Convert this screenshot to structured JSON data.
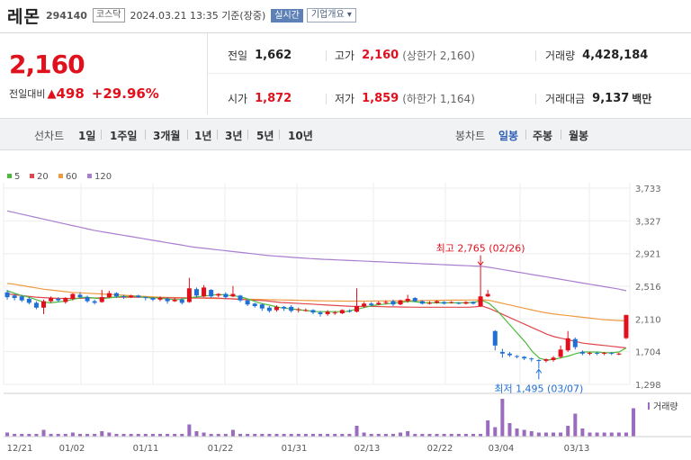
{
  "header": {
    "name": "레몬",
    "code": "294140",
    "market": "코스닥",
    "timestamp": "2024.03.21 13:35 기준(장중)",
    "realtime_badge": "실시간",
    "info_button": "기업개요 ▾"
  },
  "quote": {
    "price": "2,160",
    "change_label": "전일대비",
    "change_value": "498",
    "change_pct": "+29.96%",
    "prev_close_label": "전일",
    "prev_close": "1,662",
    "high_label": "고가",
    "high": "2,160",
    "upper_limit": "(상한가 2,160)",
    "volume_label": "거래량",
    "volume": "4,428,184",
    "open_label": "시가",
    "open": "1,872",
    "low_label": "저가",
    "low": "1,859",
    "lower_limit": "(하한가 1,164)",
    "amount_label": "거래대금",
    "amount": "9,137",
    "amount_unit": "백만"
  },
  "periods": {
    "line_label": "선차트",
    "line_items": [
      "1일",
      "1주일",
      "3개월",
      "1년",
      "3년",
      "5년",
      "10년"
    ],
    "candle_label": "봉차트",
    "candle_items": [
      "일봉",
      "주봉",
      "월봉"
    ],
    "active_candle": "일봉"
  },
  "colors": {
    "up": "#e0101c",
    "down": "#1f6fd6",
    "ma5": "#4cbb3c",
    "ma20": "#e0474c",
    "ma60": "#f09a40",
    "ma120": "#a97ed0",
    "volume": "#9a6bbf"
  },
  "chart_data": {
    "type": "candlestick",
    "legend": [
      {
        "name": "5",
        "color": "#4cbb3c"
      },
      {
        "name": "20",
        "color": "#e0474c"
      },
      {
        "name": "60",
        "color": "#f09a40"
      },
      {
        "name": "120",
        "color": "#a97ed0"
      }
    ],
    "y_ticks": [
      "3,733",
      "3,327",
      "2,921",
      "2,516",
      "2,110",
      "1,704",
      "1,298"
    ],
    "ylim": [
      1298,
      3733
    ],
    "x_ticks": [
      "12/21",
      "01/02",
      "01/11",
      "01/22",
      "01/31",
      "02/13",
      "02/22",
      "03/04",
      "03/13"
    ],
    "annotations": {
      "high": "최고 2,765 (02/26)",
      "low": "최저 1,495 (03/07)"
    },
    "volume_label": "거래량",
    "candles": [
      {
        "o": 2440,
        "c": 2380,
        "h": 2470,
        "l": 2350
      },
      {
        "o": 2400,
        "c": 2370,
        "h": 2420,
        "l": 2340
      },
      {
        "o": 2390,
        "c": 2340,
        "h": 2410,
        "l": 2320
      },
      {
        "o": 2360,
        "c": 2310,
        "h": 2380,
        "l": 2290
      },
      {
        "o": 2310,
        "c": 2250,
        "h": 2330,
        "l": 2230
      },
      {
        "o": 2250,
        "c": 2330,
        "h": 2350,
        "l": 2170
      },
      {
        "o": 2330,
        "c": 2370,
        "h": 2390,
        "l": 2310
      },
      {
        "o": 2360,
        "c": 2340,
        "h": 2380,
        "l": 2320
      },
      {
        "o": 2320,
        "c": 2370,
        "h": 2380,
        "l": 2300
      },
      {
        "o": 2360,
        "c": 2420,
        "h": 2430,
        "l": 2340
      },
      {
        "o": 2410,
        "c": 2380,
        "h": 2440,
        "l": 2370
      },
      {
        "o": 2380,
        "c": 2330,
        "h": 2400,
        "l": 2310
      },
      {
        "o": 2330,
        "c": 2310,
        "h": 2350,
        "l": 2290
      },
      {
        "o": 2320,
        "c": 2380,
        "h": 2470,
        "l": 2310
      },
      {
        "o": 2380,
        "c": 2430,
        "h": 2460,
        "l": 2370
      },
      {
        "o": 2430,
        "c": 2390,
        "h": 2440,
        "l": 2370
      },
      {
        "o": 2390,
        "c": 2380,
        "h": 2410,
        "l": 2360
      },
      {
        "o": 2380,
        "c": 2400,
        "h": 2410,
        "l": 2370
      },
      {
        "o": 2400,
        "c": 2380,
        "h": 2410,
        "l": 2370
      },
      {
        "o": 2380,
        "c": 2370,
        "h": 2390,
        "l": 2340
      },
      {
        "o": 2370,
        "c": 2350,
        "h": 2380,
        "l": 2330
      },
      {
        "o": 2350,
        "c": 2370,
        "h": 2390,
        "l": 2330
      },
      {
        "o": 2360,
        "c": 2330,
        "h": 2380,
        "l": 2300
      },
      {
        "o": 2330,
        "c": 2350,
        "h": 2370,
        "l": 2320
      },
      {
        "o": 2350,
        "c": 2310,
        "h": 2360,
        "l": 2290
      },
      {
        "o": 2320,
        "c": 2490,
        "h": 2620,
        "l": 2310
      },
      {
        "o": 2480,
        "c": 2400,
        "h": 2500,
        "l": 2380
      },
      {
        "o": 2390,
        "c": 2500,
        "h": 2530,
        "l": 2380
      },
      {
        "o": 2470,
        "c": 2390,
        "h": 2480,
        "l": 2370
      },
      {
        "o": 2400,
        "c": 2420,
        "h": 2430,
        "l": 2380
      },
      {
        "o": 2420,
        "c": 2380,
        "h": 2440,
        "l": 2360
      },
      {
        "o": 2390,
        "c": 2420,
        "h": 2520,
        "l": 2380
      },
      {
        "o": 2400,
        "c": 2340,
        "h": 2410,
        "l": 2320
      },
      {
        "o": 2340,
        "c": 2290,
        "h": 2350,
        "l": 2270
      },
      {
        "o": 2300,
        "c": 2270,
        "h": 2310,
        "l": 2250
      },
      {
        "o": 2290,
        "c": 2240,
        "h": 2300,
        "l": 2210
      },
      {
        "o": 2250,
        "c": 2210,
        "h": 2270,
        "l": 2190
      },
      {
        "o": 2220,
        "c": 2260,
        "h": 2280,
        "l": 2200
      },
      {
        "o": 2260,
        "c": 2240,
        "h": 2270,
        "l": 2210
      },
      {
        "o": 2260,
        "c": 2210,
        "h": 2280,
        "l": 2190
      },
      {
        "o": 2220,
        "c": 2230,
        "h": 2250,
        "l": 2190
      },
      {
        "o": 2220,
        "c": 2220,
        "h": 2240,
        "l": 2200
      },
      {
        "o": 2220,
        "c": 2190,
        "h": 2230,
        "l": 2170
      },
      {
        "o": 2190,
        "c": 2170,
        "h": 2210,
        "l": 2140
      },
      {
        "o": 2170,
        "c": 2200,
        "h": 2220,
        "l": 2150
      },
      {
        "o": 2190,
        "c": 2190,
        "h": 2210,
        "l": 2160
      },
      {
        "o": 2180,
        "c": 2220,
        "h": 2230,
        "l": 2170
      },
      {
        "o": 2210,
        "c": 2200,
        "h": 2230,
        "l": 2190
      },
      {
        "o": 2200,
        "c": 2270,
        "h": 2490,
        "l": 2190
      },
      {
        "o": 2270,
        "c": 2300,
        "h": 2320,
        "l": 2250
      },
      {
        "o": 2300,
        "c": 2280,
        "h": 2320,
        "l": 2270
      },
      {
        "o": 2290,
        "c": 2310,
        "h": 2330,
        "l": 2280
      },
      {
        "o": 2310,
        "c": 2320,
        "h": 2340,
        "l": 2290
      },
      {
        "o": 2330,
        "c": 2290,
        "h": 2350,
        "l": 2270
      },
      {
        "o": 2290,
        "c": 2340,
        "h": 2350,
        "l": 2280
      },
      {
        "o": 2330,
        "c": 2360,
        "h": 2410,
        "l": 2310
      },
      {
        "o": 2370,
        "c": 2330,
        "h": 2380,
        "l": 2320
      },
      {
        "o": 2330,
        "c": 2300,
        "h": 2340,
        "l": 2290
      },
      {
        "o": 2310,
        "c": 2310,
        "h": 2330,
        "l": 2290
      },
      {
        "o": 2310,
        "c": 2330,
        "h": 2340,
        "l": 2300
      },
      {
        "o": 2320,
        "c": 2300,
        "h": 2330,
        "l": 2290
      },
      {
        "o": 2310,
        "c": 2320,
        "h": 2330,
        "l": 2300
      },
      {
        "o": 2310,
        "c": 2300,
        "h": 2320,
        "l": 2290
      },
      {
        "o": 2300,
        "c": 2320,
        "h": 2330,
        "l": 2290
      },
      {
        "o": 2320,
        "c": 2300,
        "h": 2330,
        "l": 2290
      },
      {
        "o": 2270,
        "c": 2390,
        "h": 2765,
        "l": 2260
      },
      {
        "o": 2390,
        "c": 2420,
        "h": 2470,
        "l": 2380
      },
      {
        "o": 1960,
        "c": 1780,
        "h": 1970,
        "l": 1720
      },
      {
        "o": 1700,
        "c": 1680,
        "h": 1740,
        "l": 1630
      },
      {
        "o": 1680,
        "c": 1660,
        "h": 1700,
        "l": 1640
      },
      {
        "o": 1650,
        "c": 1640,
        "h": 1660,
        "l": 1620
      },
      {
        "o": 1640,
        "c": 1620,
        "h": 1650,
        "l": 1600
      },
      {
        "o": 1620,
        "c": 1610,
        "h": 1630,
        "l": 1580
      },
      {
        "o": 1600,
        "c": 1590,
        "h": 1610,
        "l": 1495
      },
      {
        "o": 1590,
        "c": 1610,
        "h": 1620,
        "l": 1570
      },
      {
        "o": 1600,
        "c": 1630,
        "h": 1650,
        "l": 1580
      },
      {
        "o": 1640,
        "c": 1730,
        "h": 1780,
        "l": 1620
      },
      {
        "o": 1720,
        "c": 1870,
        "h": 1960,
        "l": 1700
      },
      {
        "o": 1860,
        "c": 1760,
        "h": 1880,
        "l": 1730
      },
      {
        "o": 1700,
        "c": 1680,
        "h": 1720,
        "l": 1660
      },
      {
        "o": 1680,
        "c": 1690,
        "h": 1700,
        "l": 1660
      },
      {
        "o": 1690,
        "c": 1680,
        "h": 1700,
        "l": 1660
      },
      {
        "o": 1680,
        "c": 1690,
        "h": 1700,
        "l": 1660
      },
      {
        "o": 1690,
        "c": 1680,
        "h": 1700,
        "l": 1660
      },
      {
        "o": 1680,
        "c": 1680,
        "h": 1690,
        "l": 1660
      },
      {
        "o": 1872,
        "c": 2160,
        "h": 2160,
        "l": 1859
      }
    ],
    "ma5": [
      2460,
      2430,
      2400,
      2380,
      2350,
      2320,
      2310,
      2320,
      2330,
      2350,
      2370,
      2380,
      2370,
      2360,
      2370,
      2380,
      2390,
      2390,
      2390,
      2380,
      2370,
      2370,
      2360,
      2350,
      2350,
      2370,
      2380,
      2390,
      2400,
      2410,
      2410,
      2400,
      2390,
      2370,
      2340,
      2310,
      2290,
      2270,
      2250,
      2240,
      2230,
      2220,
      2210,
      2200,
      2200,
      2200,
      2200,
      2200,
      2220,
      2240,
      2260,
      2280,
      2290,
      2300,
      2310,
      2320,
      2330,
      2320,
      2310,
      2310,
      2310,
      2310,
      2310,
      2310,
      2310,
      2320,
      2340,
      2300,
      2220,
      2120,
      2020,
      1920,
      1820,
      1700,
      1620,
      1600,
      1610,
      1630,
      1650,
      1680,
      1700,
      1700,
      1700,
      1690,
      1690,
      1700,
      1750
    ],
    "ma20": [
      2420,
      2410,
      2400,
      2390,
      2380,
      2375,
      2370,
      2365,
      2365,
      2365,
      2365,
      2370,
      2370,
      2370,
      2375,
      2380,
      2380,
      2380,
      2380,
      2380,
      2375,
      2375,
      2370,
      2370,
      2370,
      2370,
      2370,
      2370,
      2370,
      2370,
      2365,
      2360,
      2355,
      2350,
      2345,
      2340,
      2335,
      2325,
      2315,
      2310,
      2305,
      2300,
      2295,
      2290,
      2285,
      2280,
      2275,
      2270,
      2265,
      2265,
      2265,
      2265,
      2262,
      2260,
      2260,
      2258,
      2256,
      2255,
      2255,
      2255,
      2255,
      2255,
      2255,
      2255,
      2255,
      2260,
      2270,
      2240,
      2200,
      2160,
      2120,
      2080,
      2040,
      2000,
      1960,
      1920,
      1890,
      1870,
      1850,
      1830,
      1810,
      1800,
      1790,
      1780,
      1770,
      1760,
      1750
    ],
    "ma60": [
      2550,
      2540,
      2525,
      2510,
      2495,
      2480,
      2470,
      2460,
      2450,
      2440,
      2435,
      2430,
      2425,
      2420,
      2415,
      2410,
      2405,
      2400,
      2395,
      2390,
      2385,
      2380,
      2378,
      2376,
      2374,
      2372,
      2370,
      2368,
      2366,
      2364,
      2362,
      2360,
      2358,
      2356,
      2354,
      2352,
      2350,
      2348,
      2346,
      2344,
      2342,
      2340,
      2338,
      2336,
      2334,
      2333,
      2332,
      2331,
      2331,
      2331,
      2331,
      2332,
      2333,
      2334,
      2335,
      2336,
      2337,
      2338,
      2339,
      2340,
      2341,
      2342,
      2343,
      2344,
      2345,
      2346,
      2348,
      2340,
      2320,
      2300,
      2280,
      2260,
      2240,
      2220,
      2200,
      2185,
      2170,
      2160,
      2150,
      2140,
      2130,
      2120,
      2110,
      2100,
      2095,
      2090,
      2085
    ],
    "ma120": [
      3450,
      3430,
      3410,
      3390,
      3370,
      3350,
      3330,
      3310,
      3290,
      3270,
      3250,
      3230,
      3210,
      3195,
      3180,
      3165,
      3150,
      3135,
      3120,
      3105,
      3090,
      3075,
      3060,
      3045,
      3030,
      3015,
      3000,
      2990,
      2980,
      2970,
      2960,
      2950,
      2940,
      2930,
      2920,
      2910,
      2900,
      2892,
      2885,
      2878,
      2872,
      2866,
      2860,
      2855,
      2850,
      2846,
      2842,
      2838,
      2834,
      2830,
      2826,
      2822,
      2818,
      2814,
      2810,
      2806,
      2802,
      2798,
      2794,
      2790,
      2786,
      2782,
      2778,
      2774,
      2770,
      2766,
      2762,
      2750,
      2735,
      2720,
      2705,
      2690,
      2675,
      2660,
      2645,
      2630,
      2615,
      2600,
      2585,
      2570,
      2555,
      2540,
      2525,
      2510,
      2495,
      2480,
      2460
    ],
    "volumes": [
      3,
      2,
      2,
      2,
      2,
      5,
      2,
      2,
      2,
      3,
      2,
      2,
      2,
      4,
      3,
      2,
      2,
      2,
      2,
      2,
      2,
      2,
      2,
      2,
      2,
      9,
      4,
      3,
      2,
      2,
      2,
      5,
      2,
      2,
      2,
      2,
      2,
      2,
      2,
      2,
      2,
      2,
      2,
      2,
      2,
      2,
      2,
      2,
      8,
      3,
      2,
      2,
      2,
      2,
      3,
      4,
      2,
      2,
      2,
      2,
      2,
      2,
      2,
      2,
      2,
      2,
      12,
      7,
      28,
      10,
      6,
      5,
      4,
      3,
      3,
      3,
      3,
      8,
      17,
      6,
      3,
      3,
      3,
      3,
      3,
      3,
      21
    ]
  }
}
